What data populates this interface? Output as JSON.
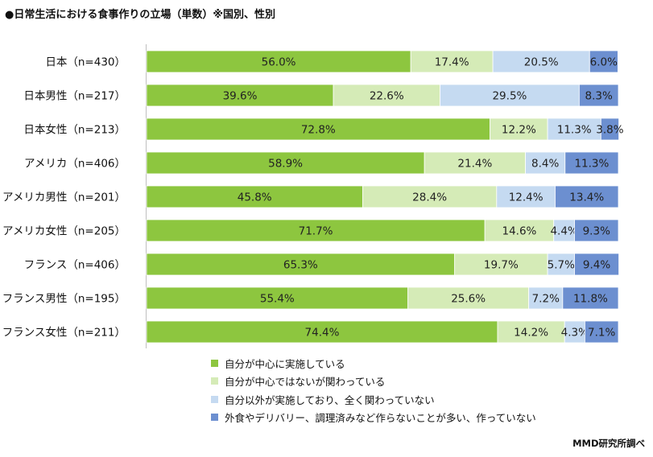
{
  "chart_data": {
    "type": "bar",
    "orientation": "horizontal",
    "stacked": true,
    "title": "●日常生活における食事作りの立場（単数）※国別、性別",
    "categories": [
      "日本（n=430）",
      "日本男性（n=217）",
      "日本女性（n=213）",
      "アメリカ（n=406）",
      "アメリカ男性（n=201）",
      "アメリカ女性（n=205）",
      "フランス（n=406）",
      "フランス男性（n=195）",
      "フランス女性（n=211）"
    ],
    "series": [
      {
        "name": "自分が中心に実施している",
        "color": "#8dc63f",
        "values": [
          56.0,
          39.6,
          72.8,
          58.9,
          45.8,
          71.7,
          65.3,
          55.4,
          74.4
        ]
      },
      {
        "name": "自分が中心ではないが関わっている",
        "color": "#d5ebb7",
        "values": [
          17.4,
          22.6,
          12.2,
          21.4,
          28.4,
          14.6,
          19.7,
          25.6,
          14.2
        ]
      },
      {
        "name": "自分以外が実施しており、全く関わっていない",
        "color": "#c5daf1",
        "values": [
          20.5,
          29.5,
          11.3,
          8.4,
          12.4,
          4.4,
          5.7,
          7.2,
          4.3
        ]
      },
      {
        "name": "外食やデリバリー、調理済みなど作らないことが多い、作っていない",
        "color": "#6c8fd0",
        "values": [
          6.0,
          8.3,
          3.8,
          11.3,
          13.4,
          9.3,
          9.4,
          11.8,
          7.1
        ]
      }
    ],
    "labels": [
      [
        "56.0%",
        "17.4%",
        "20.5%",
        "6.0%"
      ],
      [
        "39.6%",
        "22.6%",
        "29.5%",
        "8.3%"
      ],
      [
        "72.8%",
        "12.2%",
        "11.3%",
        "3.8%"
      ],
      [
        "58.9%",
        "21.4%",
        "8.4%",
        "11.3%"
      ],
      [
        "45.8%",
        "28.4%",
        "12.4%",
        "13.4%"
      ],
      [
        "71.7%",
        "14.6%",
        "4.4%",
        "9.3%"
      ],
      [
        "65.3%",
        "19.7%",
        "5.7%",
        "9.4%"
      ],
      [
        "55.4%",
        "25.6%",
        "7.2%",
        "11.8%"
      ],
      [
        "74.4%",
        "14.2%",
        "4.3%",
        "7.1%"
      ]
    ],
    "xlim": [
      0,
      100
    ],
    "legend": "bottom",
    "source": "MMD研究所調べ"
  }
}
